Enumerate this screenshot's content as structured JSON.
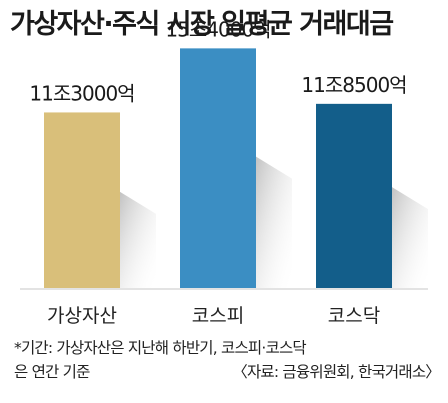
{
  "chart_data": {
    "type": "bar",
    "title": "가상자산·주식 시장 일평균 거래대금",
    "categories": [
      "가상자산",
      "코스피",
      "코스닥"
    ],
    "values": [
      113000,
      154000,
      118500
    ],
    "value_labels": [
      "11조3000억",
      "15조4000억",
      "11조8500억"
    ],
    "colors": [
      "#d9bf7a",
      "#3b8ec3",
      "#135e8a"
    ],
    "unit": "억",
    "ylim": [
      0,
      160000
    ],
    "grid": false,
    "legend": "none"
  },
  "footnote": {
    "line1": "*기간: 가상자산은 지난해 하반기, 코스피·코스닥",
    "line2a": "은 연간 기준",
    "line2b": "〈자료: 금융위원회, 한국거래소〉"
  }
}
